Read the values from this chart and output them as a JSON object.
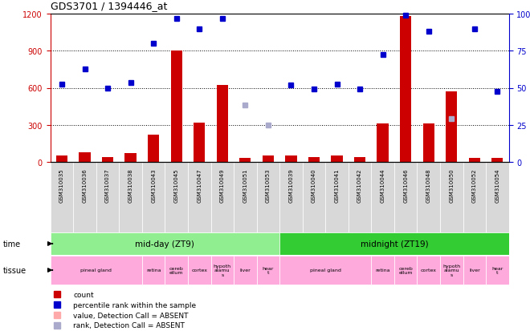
{
  "title": "GDS3701 / 1394446_at",
  "samples": [
    "GSM310035",
    "GSM310036",
    "GSM310037",
    "GSM310038",
    "GSM310043",
    "GSM310045",
    "GSM310047",
    "GSM310049",
    "GSM310051",
    "GSM310053",
    "GSM310039",
    "GSM310040",
    "GSM310041",
    "GSM310042",
    "GSM310044",
    "GSM310046",
    "GSM310048",
    "GSM310050",
    "GSM310052",
    "GSM310054"
  ],
  "count": [
    50,
    80,
    40,
    70,
    220,
    900,
    320,
    620,
    35,
    50,
    50,
    40,
    50,
    40,
    310,
    1180,
    310,
    570,
    35,
    30
  ],
  "rank": [
    630,
    750,
    600,
    640,
    960,
    1160,
    1080,
    1160,
    null,
    null,
    620,
    590,
    630,
    590,
    870,
    1190,
    1060,
    null,
    1075,
    570
  ],
  "count_absent": [
    null,
    null,
    null,
    null,
    null,
    null,
    null,
    null,
    null,
    null,
    null,
    null,
    null,
    null,
    null,
    null,
    null,
    null,
    null,
    null
  ],
  "rank_absent": [
    null,
    null,
    null,
    null,
    null,
    null,
    null,
    null,
    460,
    300,
    null,
    null,
    null,
    null,
    null,
    null,
    null,
    350,
    null,
    null
  ],
  "rank_max": 1200,
  "percentile_max": 100,
  "yticks_left": [
    0,
    300,
    600,
    900,
    1200
  ],
  "yticks_right": [
    0,
    25,
    50,
    75,
    100
  ],
  "bar_color": "#cc0000",
  "rank_color": "#0000cc",
  "absent_rank_color": "#aaaacc",
  "absent_count_color": "#ffaaaa",
  "bg_color": "#ffffff",
  "axis_left_color": "#cc0000",
  "axis_right_color": "#0000cc",
  "bar_width": 0.5,
  "midday_color": "#90ee90",
  "midnight_color": "#44cc44",
  "tissue_color": "#ffaadd",
  "tissue_groups": [
    {
      "label": "pineal gland",
      "start": 0,
      "end": 3
    },
    {
      "label": "retina",
      "start": 4,
      "end": 4
    },
    {
      "label": "cereb\nellum",
      "start": 5,
      "end": 5
    },
    {
      "label": "cortex",
      "start": 6,
      "end": 6
    },
    {
      "label": "hypoth\nalamu\ns",
      "start": 7,
      "end": 7
    },
    {
      "label": "liver",
      "start": 8,
      "end": 8
    },
    {
      "label": "hear\nt",
      "start": 9,
      "end": 9
    },
    {
      "label": "pineal gland",
      "start": 10,
      "end": 13
    },
    {
      "label": "retina",
      "start": 14,
      "end": 14
    },
    {
      "label": "cereb\nellum",
      "start": 15,
      "end": 15
    },
    {
      "label": "cortex",
      "start": 16,
      "end": 16
    },
    {
      "label": "hypoth\nalamu\ns",
      "start": 17,
      "end": 17
    },
    {
      "label": "liver",
      "start": 18,
      "end": 18
    },
    {
      "label": "hear\nt",
      "start": 19,
      "end": 19
    }
  ]
}
